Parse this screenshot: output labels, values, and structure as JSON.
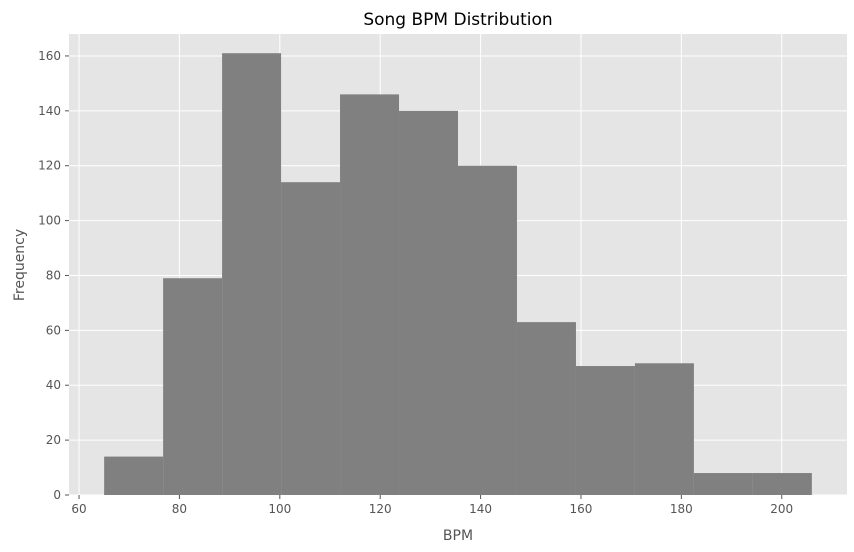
{
  "chart_data": {
    "type": "bar",
    "title": "Song BPM Distribution",
    "xlabel": "BPM",
    "ylabel": "Frequency",
    "xlim": [
      58,
      213
    ],
    "ylim": [
      0,
      168
    ],
    "xticks": [
      60,
      80,
      100,
      120,
      140,
      160,
      180,
      200
    ],
    "yticks": [
      0,
      20,
      40,
      60,
      80,
      100,
      120,
      140,
      160
    ],
    "bin_edges": [
      65,
      76.75,
      88.5,
      100.25,
      112,
      123.75,
      135.5,
      147.25,
      159,
      170.75,
      182.5,
      194.25,
      206
    ],
    "values": [
      14,
      79,
      161,
      114,
      146,
      140,
      120,
      63,
      47,
      48,
      8,
      8
    ],
    "grid": true,
    "colors": {
      "bar": "#808080",
      "plot_background": "#e5e5e5",
      "grid": "#ffffff"
    }
  }
}
